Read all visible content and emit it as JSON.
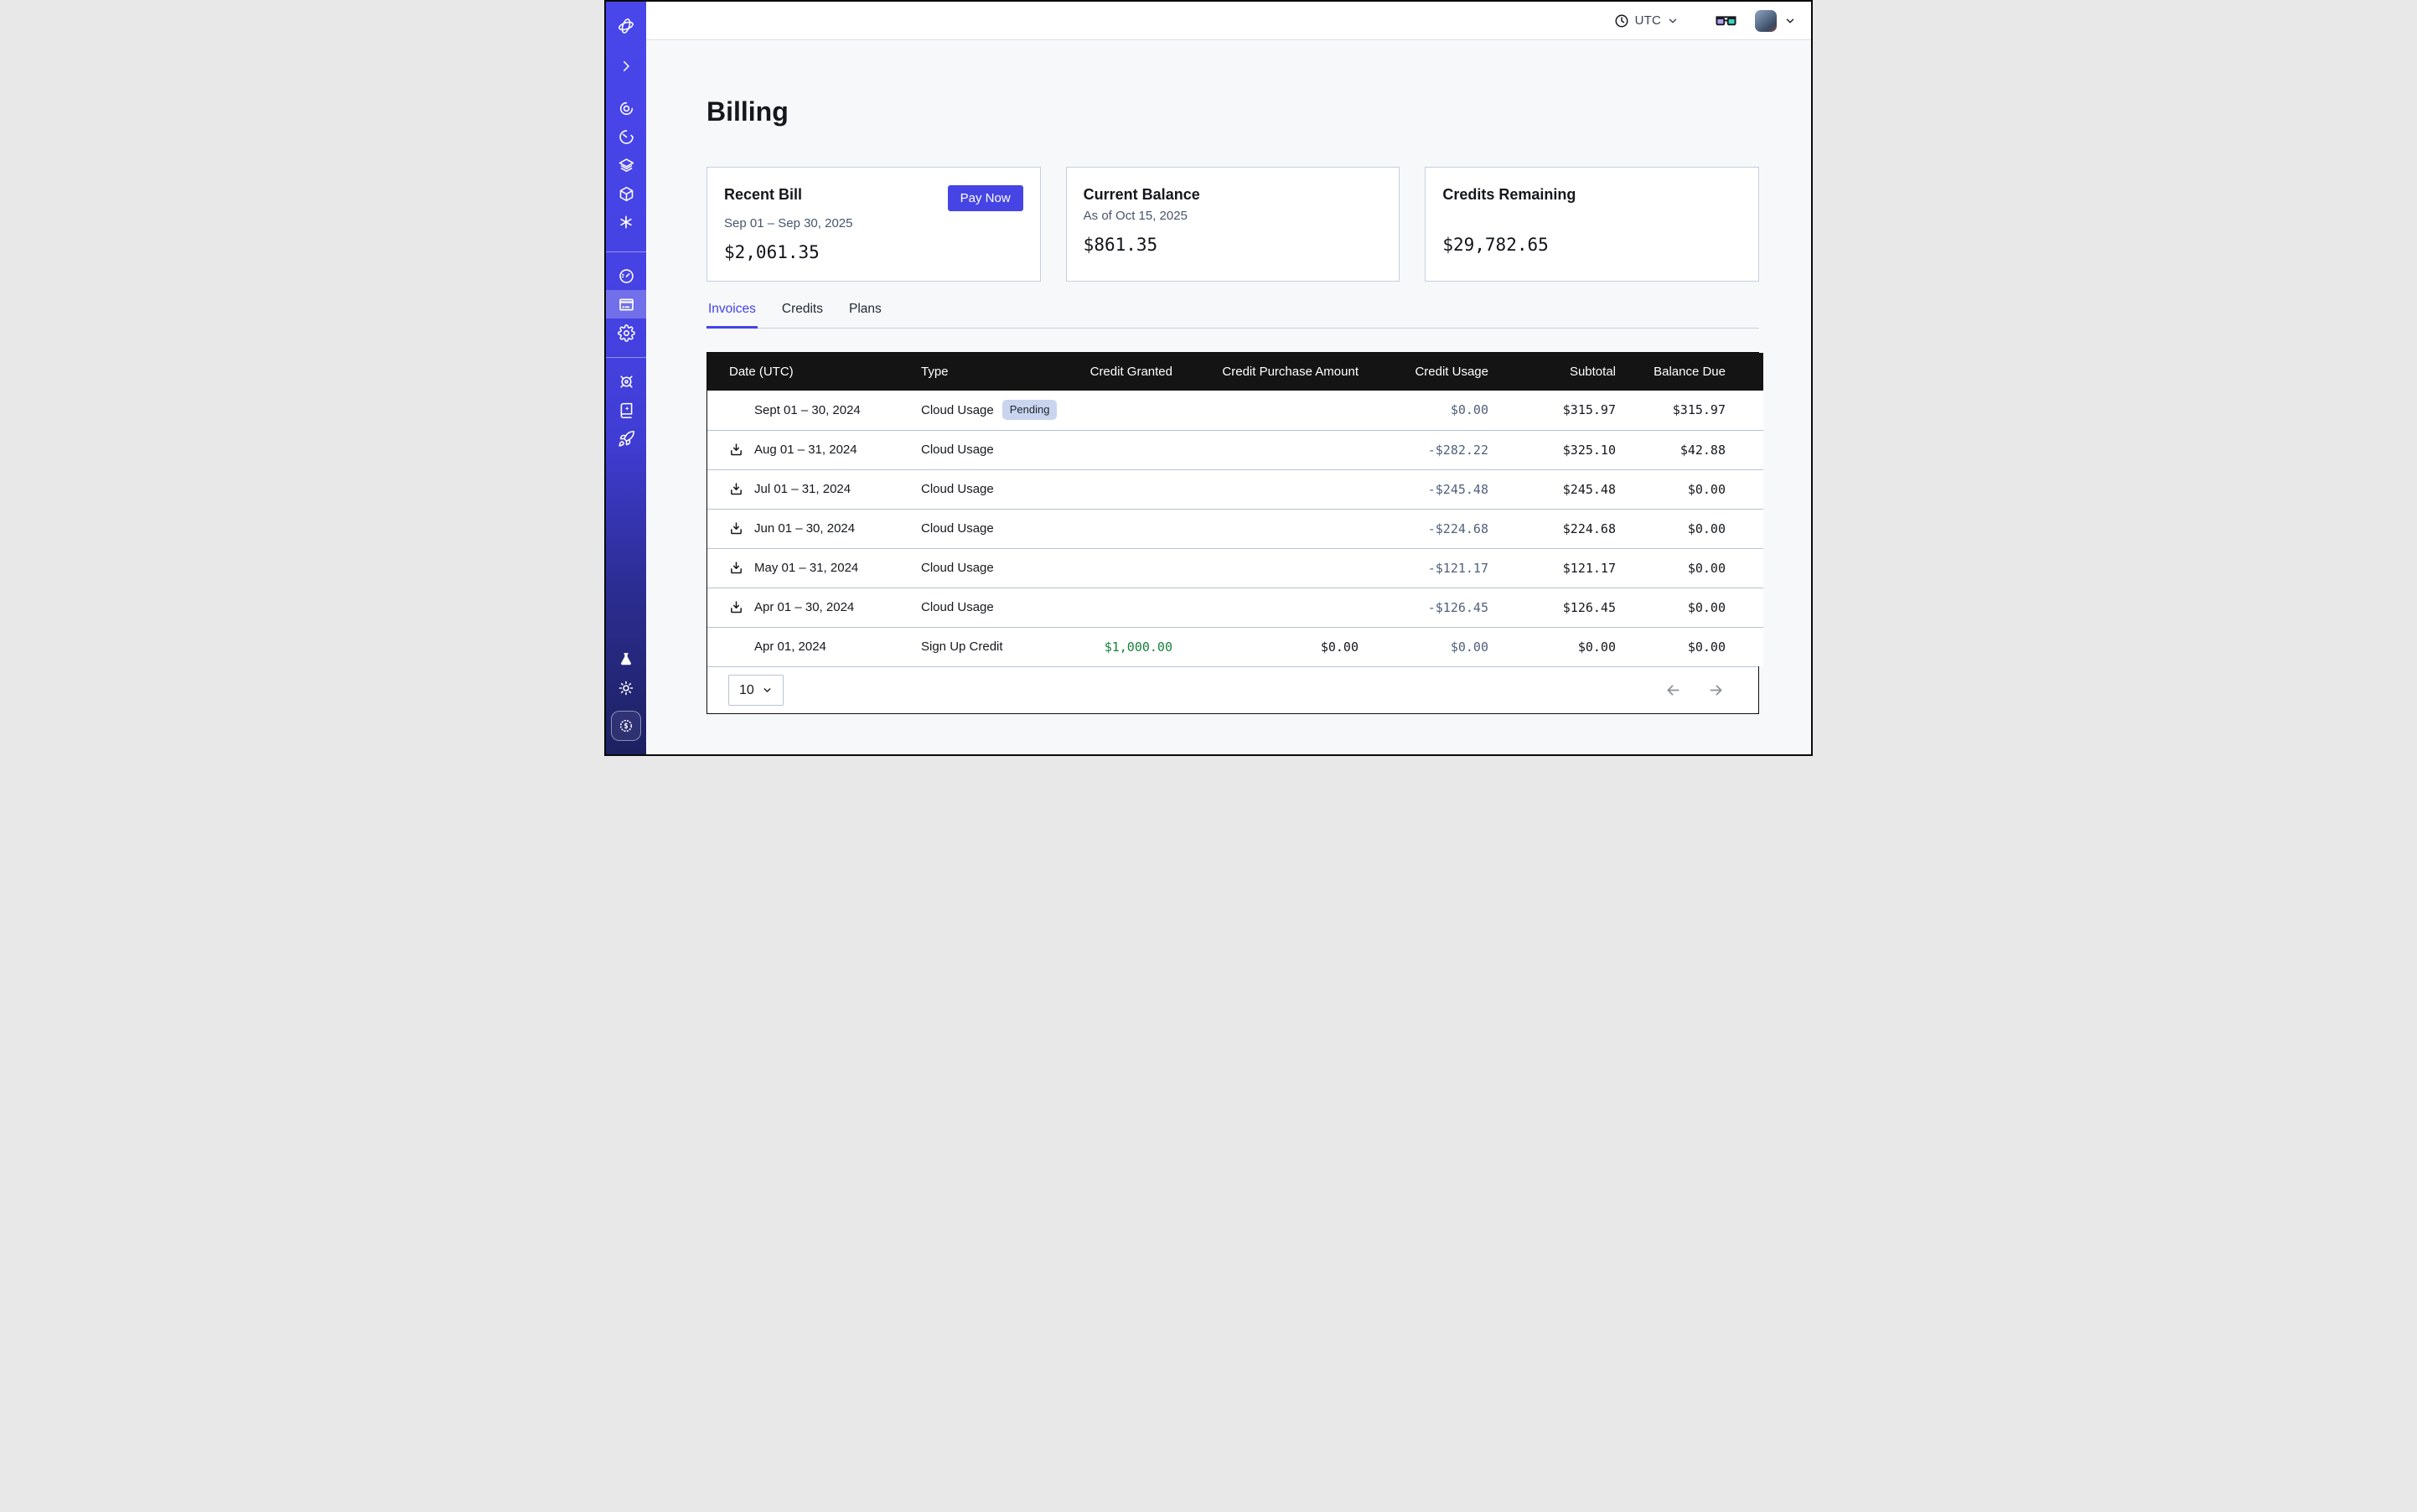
{
  "topbar": {
    "timezone_label": "UTC",
    "icons": [
      "clock-icon",
      "chevron-down-icon",
      "glasses-icon",
      "avatar",
      "chevron-down-icon"
    ]
  },
  "sidebar": {
    "items": [
      "logo",
      "collapse-chevron",
      "workflows-spiral",
      "timer",
      "layers",
      "cube",
      "asterisk",
      "usage-gauge",
      "billing-card",
      "settings-gear",
      "helm-wheel",
      "docs-book",
      "rocket",
      "lab-flask",
      "theme-sun",
      "credits-coin"
    ],
    "active_item": "billing-card"
  },
  "page": {
    "title": "Billing"
  },
  "cards": {
    "recent_bill": {
      "title": "Recent Bill",
      "period": "Sep 01 – Sep 30, 2025",
      "amount": "$2,061.35",
      "action_label": "Pay Now"
    },
    "current_balance": {
      "title": "Current Balance",
      "as_of": "As of Oct 15, 2025",
      "amount": "$861.35"
    },
    "credits_remaining": {
      "title": "Credits Remaining",
      "amount": "$29,782.65"
    }
  },
  "tabs": {
    "items": [
      "Invoices",
      "Credits",
      "Plans"
    ],
    "active": "Invoices"
  },
  "invoice_table": {
    "columns": [
      "Date (UTC)",
      "Type",
      "Credit Granted",
      "Credit Purchase Amount",
      "Credit Usage",
      "Subtotal",
      "Balance Due"
    ],
    "rows": [
      {
        "date": "Sept 01 – 30, 2024",
        "downloadable": false,
        "type": "Cloud Usage",
        "badge": "Pending",
        "credit_granted": "",
        "credit_purchase_amount": "",
        "credit_usage": "$0.00",
        "subtotal": "$315.97",
        "balance_due": "$315.97"
      },
      {
        "date": "Aug 01 – 31, 2024",
        "downloadable": true,
        "type": "Cloud Usage",
        "badge": "",
        "credit_granted": "",
        "credit_purchase_amount": "",
        "credit_usage": "-$282.22",
        "subtotal": "$325.10",
        "balance_due": "$42.88"
      },
      {
        "date": "Jul 01 – 31, 2024",
        "downloadable": true,
        "type": "Cloud Usage",
        "badge": "",
        "credit_granted": "",
        "credit_purchase_amount": "",
        "credit_usage": "-$245.48",
        "subtotal": "$245.48",
        "balance_due": "$0.00"
      },
      {
        "date": "Jun 01 – 30, 2024",
        "downloadable": true,
        "type": "Cloud Usage",
        "badge": "",
        "credit_granted": "",
        "credit_purchase_amount": "",
        "credit_usage": "-$224.68",
        "subtotal": "$224.68",
        "balance_due": "$0.00"
      },
      {
        "date": "May 01 – 31, 2024",
        "downloadable": true,
        "type": "Cloud Usage",
        "badge": "",
        "credit_granted": "",
        "credit_purchase_amount": "",
        "credit_usage": "-$121.17",
        "subtotal": "$121.17",
        "balance_due": "$0.00"
      },
      {
        "date": "Apr 01 – 30, 2024",
        "downloadable": true,
        "type": "Cloud Usage",
        "badge": "",
        "credit_granted": "",
        "credit_purchase_amount": "",
        "credit_usage": "-$126.45",
        "subtotal": "$126.45",
        "balance_due": "$0.00"
      },
      {
        "date": "Apr 01, 2024",
        "downloadable": false,
        "type": "Sign Up Credit",
        "badge": "",
        "credit_granted": "$1,000.00",
        "credit_purchase_amount": "$0.00",
        "credit_usage": "$0.00",
        "subtotal": "$0.00",
        "balance_due": "$0.00"
      }
    ],
    "pagination": {
      "page_size": "10"
    }
  },
  "colors": {
    "accent": "#4644e4",
    "sidebar_top": "#4946ea",
    "sidebar_bottom": "#1d2161",
    "credit_usage_text": "#51617c",
    "credit_granted_text": "#17823c",
    "pending_badge_bg": "#c9d5ef",
    "table_header_bg": "#141414",
    "row_divider": "#b6c2d4"
  }
}
